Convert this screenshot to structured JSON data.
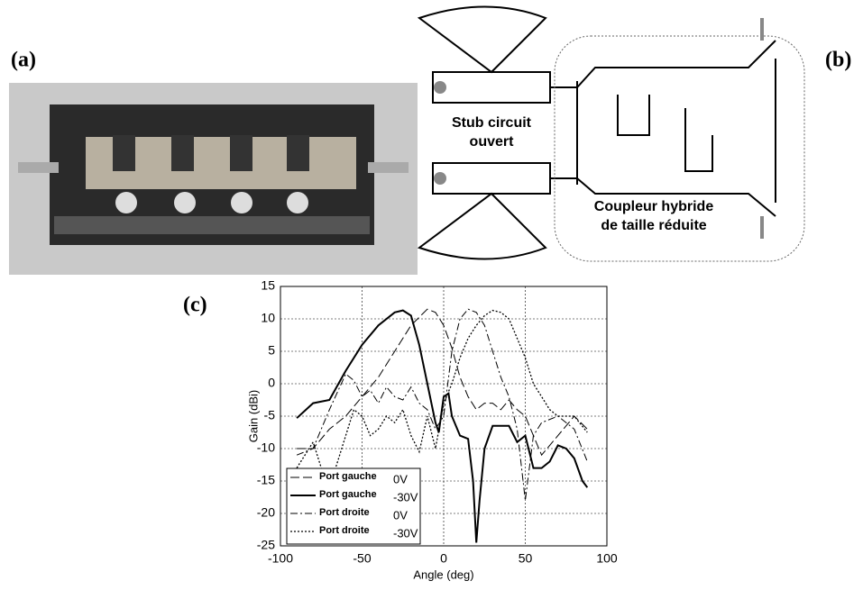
{
  "panels": {
    "a": "(a)",
    "b": "(b)",
    "c": "(c)"
  },
  "diagram": {
    "stub_label": [
      "Stub circuit",
      "ouvert"
    ],
    "coupler_label": [
      "Coupleur hybride",
      "de taille réduite"
    ]
  },
  "chart_data": {
    "type": "line",
    "xlabel": "Angle (deg)",
    "ylabel": "Gain (dBi)",
    "xlim": [
      -100,
      100
    ],
    "ylim": [
      -25,
      15
    ],
    "xticks": [
      -100,
      -50,
      0,
      50,
      100
    ],
    "yticks": [
      -25,
      -20,
      -15,
      -10,
      -5,
      0,
      5,
      10,
      15
    ],
    "grid": true,
    "series": [
      {
        "name": "Port gauche",
        "bias": "0V",
        "color": "#000000",
        "dash": "10,4",
        "width": 1,
        "x": [
          -90,
          -80,
          -70,
          -60,
          -50,
          -40,
          -30,
          -20,
          -10,
          -5,
          0,
          5,
          10,
          15,
          20,
          25,
          30,
          35,
          40,
          45,
          50,
          55,
          60,
          70,
          80,
          88
        ],
        "values": [
          -10,
          -10,
          -7,
          -5,
          -2,
          1,
          5,
          9,
          11.5,
          11,
          9,
          5.5,
          1,
          -2,
          -4,
          -3,
          -3,
          -4,
          -2.5,
          -4,
          -5,
          -8,
          -11,
          -8,
          -5,
          -7
        ]
      },
      {
        "name": "Port gauche",
        "bias": "-30V",
        "color": "#000000",
        "dash": "none",
        "width": 2,
        "x": [
          -90,
          -80,
          -70,
          -60,
          -50,
          -40,
          -30,
          -25,
          -20,
          -15,
          -10,
          -5,
          -3,
          0,
          3,
          5,
          10,
          15,
          18,
          20,
          22,
          25,
          30,
          35,
          40,
          45,
          50,
          55,
          60,
          65,
          70,
          75,
          80,
          85,
          88
        ],
        "values": [
          -5.3,
          -3,
          -2.5,
          2,
          6,
          9,
          11,
          11.3,
          10.5,
          6,
          0,
          -6,
          -7.5,
          -2,
          -1.5,
          -5,
          -8,
          -8.5,
          -15,
          -24.5,
          -18,
          -10,
          -6.5,
          -6.5,
          -6.5,
          -9,
          -8,
          -13,
          -13,
          -12,
          -9.5,
          -10,
          -11.5,
          -15,
          -16
        ]
      },
      {
        "name": "Port droite",
        "bias": "0V",
        "color": "#000000",
        "dash": "8,3,2,3",
        "width": 1,
        "x": [
          -90,
          -80,
          -70,
          -60,
          -55,
          -50,
          -45,
          -40,
          -35,
          -30,
          -25,
          -20,
          -15,
          -10,
          -5,
          0,
          5,
          10,
          15,
          20,
          25,
          30,
          35,
          40,
          45,
          50,
          55,
          60,
          70,
          80,
          88
        ],
        "values": [
          -11,
          -10,
          -4,
          1.5,
          0.5,
          -2,
          -1,
          -3,
          -0.5,
          -2,
          -2.5,
          -0.5,
          -3,
          -4,
          -7,
          -5,
          5,
          10,
          11.5,
          11,
          9,
          5,
          1,
          -2,
          -7,
          -18,
          -8,
          -6,
          -5,
          -7,
          -12
        ]
      },
      {
        "name": "Port droite",
        "bias": "-30V",
        "color": "#000000",
        "dash": "2,2",
        "width": 1.3,
        "x": [
          -90,
          -80,
          -75,
          -70,
          -65,
          -60,
          -55,
          -50,
          -45,
          -40,
          -35,
          -30,
          -25,
          -20,
          -15,
          -10,
          -5,
          0,
          5,
          10,
          15,
          20,
          25,
          30,
          35,
          40,
          45,
          50,
          55,
          60,
          65,
          70,
          80,
          88
        ],
        "values": [
          -13,
          -9,
          -13,
          -16,
          -12,
          -8,
          -4,
          -5,
          -8,
          -7,
          -5,
          -6,
          -4,
          -8,
          -10.5,
          -5,
          -10,
          -3,
          0,
          4,
          7,
          9,
          10.5,
          11.3,
          11,
          10,
          7,
          4,
          0,
          -2,
          -4,
          -5,
          -5,
          -7.5
        ]
      }
    ]
  }
}
